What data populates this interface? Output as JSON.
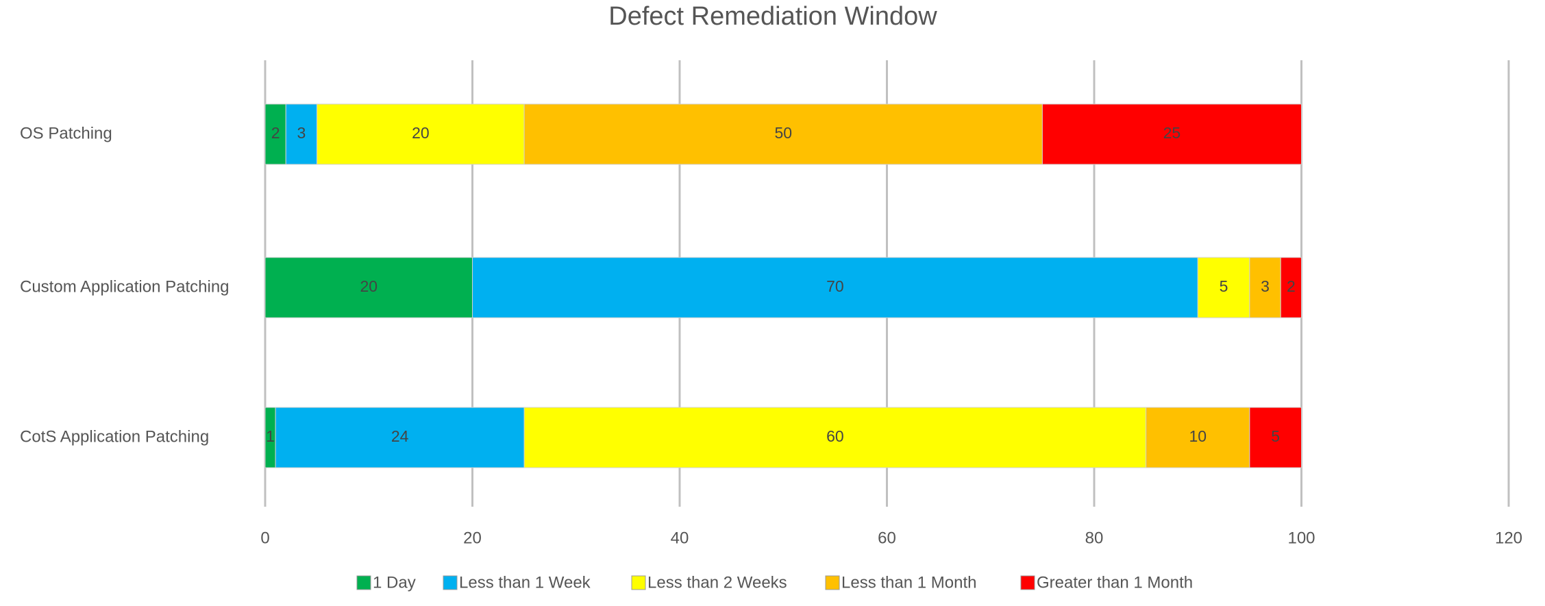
{
  "chart_data": {
    "type": "stacked_bar",
    "orientation": "horizontal",
    "title": "Defect Remediation Window",
    "categories": [
      "OS Patching",
      "Custom Application Patching",
      "CotS Application Patching"
    ],
    "series": [
      {
        "name": "1 Day",
        "color": "#00b050",
        "values": [
          2,
          20,
          1
        ]
      },
      {
        "name": "Less than 1 Week",
        "color": "#00b0f0",
        "values": [
          3,
          70,
          24
        ]
      },
      {
        "name": "Less than 2 Weeks",
        "color": "#ffff00",
        "values": [
          20,
          5,
          60
        ]
      },
      {
        "name": "Less than 1 Month",
        "color": "#ffc000",
        "values": [
          50,
          3,
          10
        ]
      },
      {
        "name": "Greater than 1 Month",
        "color": "#ff0000",
        "values": [
          25,
          2,
          5
        ]
      }
    ],
    "xlim": [
      0,
      120
    ],
    "xticks": [
      0,
      20,
      40,
      60,
      80,
      100,
      120
    ],
    "grid": true,
    "legend": "bottom"
  }
}
